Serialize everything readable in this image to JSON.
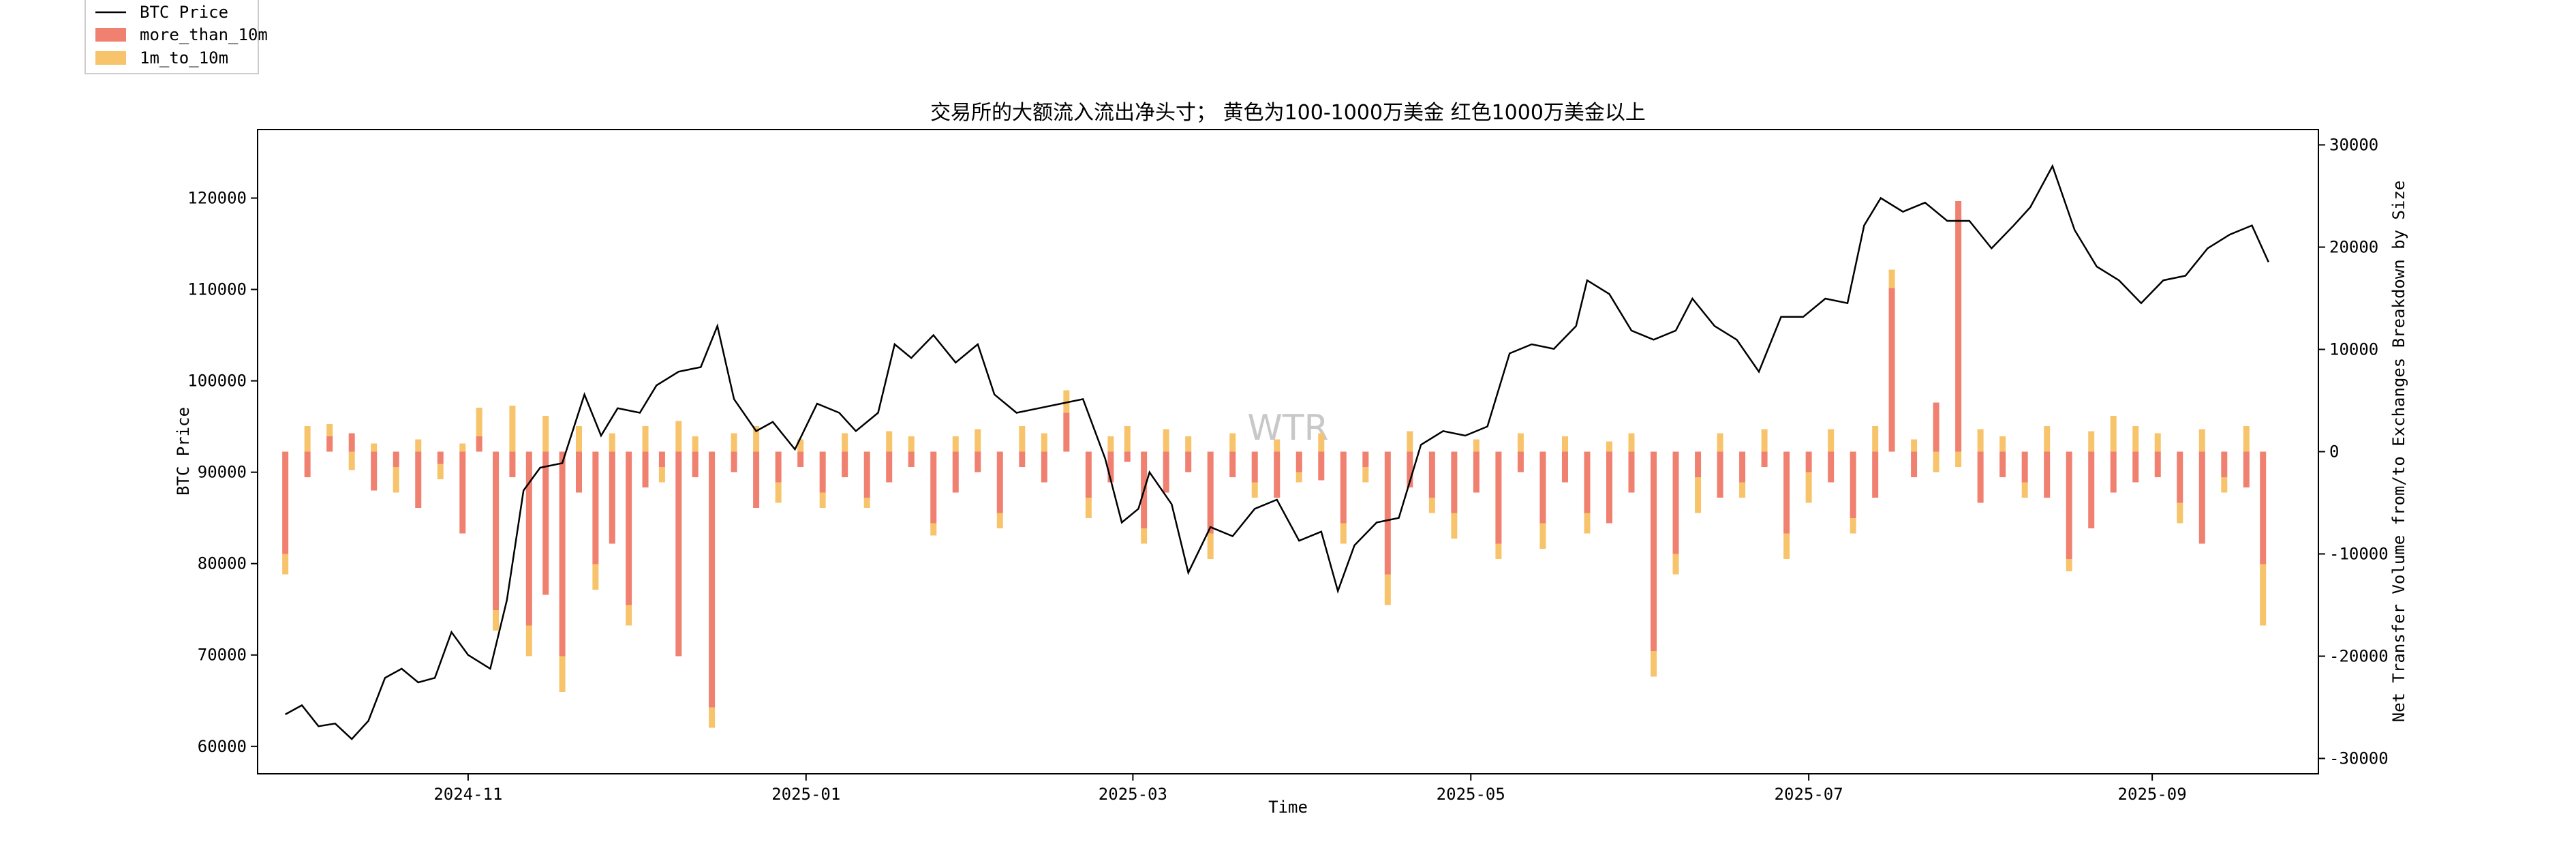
{
  "colors": {
    "price_line": "#000000",
    "more_than_10m": "#f08070",
    "m1_to_10m": "#f7c46c",
    "axis": "#000000",
    "watermark": "#c8c8c8"
  },
  "chart_data": {
    "type": "bar",
    "title": "交易所的大额流入流出净头寸； 黄色为100-1000万美金 红色1000万美金以上",
    "xlabel": "Time",
    "ylabel": "BTC Price",
    "y2label": "Net Transfer Volume from/to Exchanges Breakdown by Size",
    "watermark": "WTR",
    "x_range": [
      "2024-09-24",
      "2025-10-01"
    ],
    "ylim": [
      57000,
      127500
    ],
    "y2lim": [
      -31500,
      31500
    ],
    "x_ticks": [
      "2024-11",
      "2025-01",
      "2025-03",
      "2025-05",
      "2025-07",
      "2025-09"
    ],
    "y_ticks": [
      60000,
      70000,
      80000,
      90000,
      100000,
      110000,
      120000
    ],
    "y2_ticks": [
      -30000,
      -20000,
      -10000,
      0,
      10000,
      20000,
      30000
    ],
    "grid": false,
    "legend_position": "upper-left-outside",
    "legend": [
      "BTC Price",
      "more_than_10m",
      "1m_to_10m"
    ],
    "price_series": {
      "name": "BTC Price",
      "dates": [
        "2024-09-29",
        "2024-10-02",
        "2024-10-05",
        "2024-10-08",
        "2024-10-11",
        "2024-10-14",
        "2024-10-17",
        "2024-10-20",
        "2024-10-23",
        "2024-10-26",
        "2024-10-29",
        "2024-11-01",
        "2024-11-05",
        "2024-11-08",
        "2024-11-11",
        "2024-11-14",
        "2024-11-18",
        "2024-11-22",
        "2024-11-25",
        "2024-11-28",
        "2024-12-02",
        "2024-12-05",
        "2024-12-09",
        "2024-12-13",
        "2024-12-16",
        "2024-12-19",
        "2024-12-23",
        "2024-12-26",
        "2024-12-30",
        "2025-01-03",
        "2025-01-07",
        "2025-01-10",
        "2025-01-14",
        "2025-01-17",
        "2025-01-20",
        "2025-01-24",
        "2025-01-28",
        "2025-02-01",
        "2025-02-04",
        "2025-02-08",
        "2025-02-12",
        "2025-02-16",
        "2025-02-20",
        "2025-02-24",
        "2025-02-27",
        "2025-03-02",
        "2025-03-04",
        "2025-03-08",
        "2025-03-11",
        "2025-03-15",
        "2025-03-19",
        "2025-03-23",
        "2025-03-27",
        "2025-03-31",
        "2025-04-04",
        "2025-04-07",
        "2025-04-10",
        "2025-04-14",
        "2025-04-18",
        "2025-04-22",
        "2025-04-26",
        "2025-04-30",
        "2025-05-04",
        "2025-05-08",
        "2025-05-12",
        "2025-05-16",
        "2025-05-20",
        "2025-05-22",
        "2025-05-26",
        "2025-05-30",
        "2025-06-03",
        "2025-06-07",
        "2025-06-10",
        "2025-06-14",
        "2025-06-18",
        "2025-06-22",
        "2025-06-26",
        "2025-06-30",
        "2025-07-04",
        "2025-07-08",
        "2025-07-11",
        "2025-07-14",
        "2025-07-18",
        "2025-07-22",
        "2025-07-26",
        "2025-07-30",
        "2025-08-03",
        "2025-08-07",
        "2025-08-10",
        "2025-08-14",
        "2025-08-18",
        "2025-08-22",
        "2025-08-26",
        "2025-08-30",
        "2025-09-03",
        "2025-09-07",
        "2025-09-11",
        "2025-09-15",
        "2025-09-19",
        "2025-09-22"
      ],
      "values": [
        63500,
        64500,
        62200,
        62500,
        60800,
        62800,
        67500,
        68500,
        67000,
        67500,
        72500,
        70000,
        68500,
        76000,
        88000,
        90500,
        91000,
        98500,
        94000,
        97000,
        96500,
        99500,
        101000,
        101500,
        106000,
        98000,
        94500,
        95500,
        92500,
        97500,
        96500,
        94500,
        96500,
        104000,
        102500,
        105000,
        102000,
        104000,
        98500,
        96500,
        97000,
        97500,
        98000,
        91500,
        84500,
        86000,
        90000,
        86500,
        79000,
        84000,
        83000,
        86000,
        87000,
        82500,
        83500,
        77000,
        82000,
        84500,
        85000,
        93000,
        94500,
        94000,
        95000,
        103000,
        104000,
        103500,
        106000,
        111000,
        109500,
        105500,
        104500,
        105500,
        109000,
        106000,
        104500,
        101000,
        107000,
        107000,
        109000,
        108500,
        117000,
        120000,
        118500,
        119500,
        117500,
        117500,
        114500,
        117000,
        119000,
        123500,
        116500,
        112500,
        111000,
        108500,
        111000,
        111500,
        114500,
        116000,
        117000,
        113000
      ]
    },
    "series": [
      {
        "name": "more_than_10m",
        "dates": [
          "2024-09-29",
          "2024-10-03",
          "2024-10-07",
          "2024-10-11",
          "2024-10-15",
          "2024-10-19",
          "2024-10-23",
          "2024-10-27",
          "2024-10-31",
          "2024-11-03",
          "2024-11-06",
          "2024-11-09",
          "2024-11-12",
          "2024-11-15",
          "2024-11-18",
          "2024-11-21",
          "2024-11-24",
          "2024-11-27",
          "2024-11-30",
          "2024-12-03",
          "2024-12-06",
          "2024-12-09",
          "2024-12-12",
          "2024-12-15",
          "2024-12-19",
          "2024-12-23",
          "2024-12-27",
          "2024-12-31",
          "2025-01-04",
          "2025-01-08",
          "2025-01-12",
          "2025-01-16",
          "2025-01-20",
          "2025-01-24",
          "2025-01-28",
          "2025-02-01",
          "2025-02-05",
          "2025-02-09",
          "2025-02-13",
          "2025-02-17",
          "2025-02-21",
          "2025-02-25",
          "2025-02-28",
          "2025-03-03",
          "2025-03-07",
          "2025-03-11",
          "2025-03-15",
          "2025-03-19",
          "2025-03-23",
          "2025-03-27",
          "2025-03-31",
          "2025-04-04",
          "2025-04-08",
          "2025-04-12",
          "2025-04-16",
          "2025-04-20",
          "2025-04-24",
          "2025-04-28",
          "2025-05-02",
          "2025-05-06",
          "2025-05-10",
          "2025-05-14",
          "2025-05-18",
          "2025-05-22",
          "2025-05-26",
          "2025-05-30",
          "2025-06-03",
          "2025-06-07",
          "2025-06-11",
          "2025-06-15",
          "2025-06-19",
          "2025-06-23",
          "2025-06-27",
          "2025-07-01",
          "2025-07-05",
          "2025-07-09",
          "2025-07-13",
          "2025-07-16",
          "2025-07-20",
          "2025-07-24",
          "2025-07-28",
          "2025-08-01",
          "2025-08-05",
          "2025-08-09",
          "2025-08-13",
          "2025-08-17",
          "2025-08-21",
          "2025-08-25",
          "2025-08-29",
          "2025-09-02",
          "2025-09-06",
          "2025-09-10",
          "2025-09-14",
          "2025-09-18",
          "2025-09-21"
        ],
        "values": [
          -10000,
          -2500,
          1500,
          1800,
          -3800,
          -1500,
          -5500,
          -1200,
          -8000,
          1500,
          -15500,
          -2500,
          -17000,
          -14000,
          -20000,
          -4000,
          -11000,
          -9000,
          -15000,
          -3500,
          -1500,
          -20000,
          -2500,
          -25000,
          -2000,
          -5500,
          -3000,
          -1500,
          -4000,
          -2500,
          -4500,
          -3000,
          -1500,
          -7000,
          -4000,
          -2000,
          -6000,
          -1500,
          -3000,
          3800,
          -4500,
          -3000,
          -1000,
          -7500,
          -4000,
          -2000,
          -8000,
          -2500,
          -3000,
          -4500,
          -2000,
          -2800,
          -7000,
          -1500,
          -12000,
          -3500,
          -4500,
          -6000,
          -4000,
          -9000,
          -2000,
          -7000,
          -3000,
          -6000,
          -7000,
          -4000,
          -19500,
          -10000,
          -2500,
          -4500,
          -3000,
          -1500,
          -8000,
          -2000,
          -3000,
          -6500,
          -4500,
          16000,
          -2500,
          4800,
          24500,
          -5000,
          -2500,
          -3000,
          -4500,
          -10500,
          -7500,
          -4000,
          -3000,
          -2500,
          -5000,
          -9000,
          -2500,
          -3500,
          -11000
        ]
      },
      {
        "name": "1m_to_10m",
        "dates": [
          "2024-09-29",
          "2024-10-03",
          "2024-10-07",
          "2024-10-11",
          "2024-10-15",
          "2024-10-19",
          "2024-10-23",
          "2024-10-27",
          "2024-10-31",
          "2024-11-03",
          "2024-11-06",
          "2024-11-09",
          "2024-11-12",
          "2024-11-15",
          "2024-11-18",
          "2024-11-21",
          "2024-11-24",
          "2024-11-27",
          "2024-11-30",
          "2024-12-03",
          "2024-12-06",
          "2024-12-09",
          "2024-12-12",
          "2024-12-15",
          "2024-12-19",
          "2024-12-23",
          "2024-12-27",
          "2024-12-31",
          "2025-01-04",
          "2025-01-08",
          "2025-01-12",
          "2025-01-16",
          "2025-01-20",
          "2025-01-24",
          "2025-01-28",
          "2025-02-01",
          "2025-02-05",
          "2025-02-09",
          "2025-02-13",
          "2025-02-17",
          "2025-02-21",
          "2025-02-25",
          "2025-02-28",
          "2025-03-03",
          "2025-03-07",
          "2025-03-11",
          "2025-03-15",
          "2025-03-19",
          "2025-03-23",
          "2025-03-27",
          "2025-03-31",
          "2025-04-04",
          "2025-04-08",
          "2025-04-12",
          "2025-04-16",
          "2025-04-20",
          "2025-04-24",
          "2025-04-28",
          "2025-05-02",
          "2025-05-06",
          "2025-05-10",
          "2025-05-14",
          "2025-05-18",
          "2025-05-22",
          "2025-05-26",
          "2025-05-30",
          "2025-06-03",
          "2025-06-07",
          "2025-06-11",
          "2025-06-15",
          "2025-06-19",
          "2025-06-23",
          "2025-06-27",
          "2025-07-01",
          "2025-07-05",
          "2025-07-09",
          "2025-07-13",
          "2025-07-16",
          "2025-07-20",
          "2025-07-24",
          "2025-07-28",
          "2025-08-01",
          "2025-08-05",
          "2025-08-09",
          "2025-08-13",
          "2025-08-17",
          "2025-08-21",
          "2025-08-25",
          "2025-08-29",
          "2025-09-02",
          "2025-09-06",
          "2025-09-10",
          "2025-09-14",
          "2025-09-18",
          "2025-09-21"
        ],
        "values": [
          -2000,
          2500,
          1200,
          -1800,
          800,
          -2500,
          1200,
          -1500,
          800,
          2800,
          -2000,
          4500,
          -3000,
          3500,
          -3500,
          2500,
          -2500,
          1800,
          -2000,
          2500,
          -1500,
          3000,
          1500,
          -2000,
          1800,
          2500,
          -2000,
          1200,
          -1500,
          1800,
          -1000,
          2000,
          1500,
          -1200,
          1500,
          2200,
          -1500,
          2500,
          1800,
          2200,
          -2000,
          1500,
          2500,
          -1500,
          2200,
          1500,
          -2500,
          1800,
          -1500,
          1200,
          -1000,
          1800,
          -2000,
          -1500,
          -3000,
          2000,
          -1500,
          -2500,
          1200,
          -1500,
          1800,
          -2500,
          1500,
          -2000,
          1000,
          1800,
          -2500,
          -2000,
          -3500,
          1800,
          -1500,
          2200,
          -2500,
          -3000,
          2200,
          -1500,
          2500,
          1800,
          1200,
          -2000,
          -1500,
          2200,
          1500,
          -1500,
          2500,
          -1200,
          2000,
          3500,
          2500,
          1800,
          -2000,
          2200,
          -1500,
          2500,
          -6000
        ]
      }
    ]
  }
}
